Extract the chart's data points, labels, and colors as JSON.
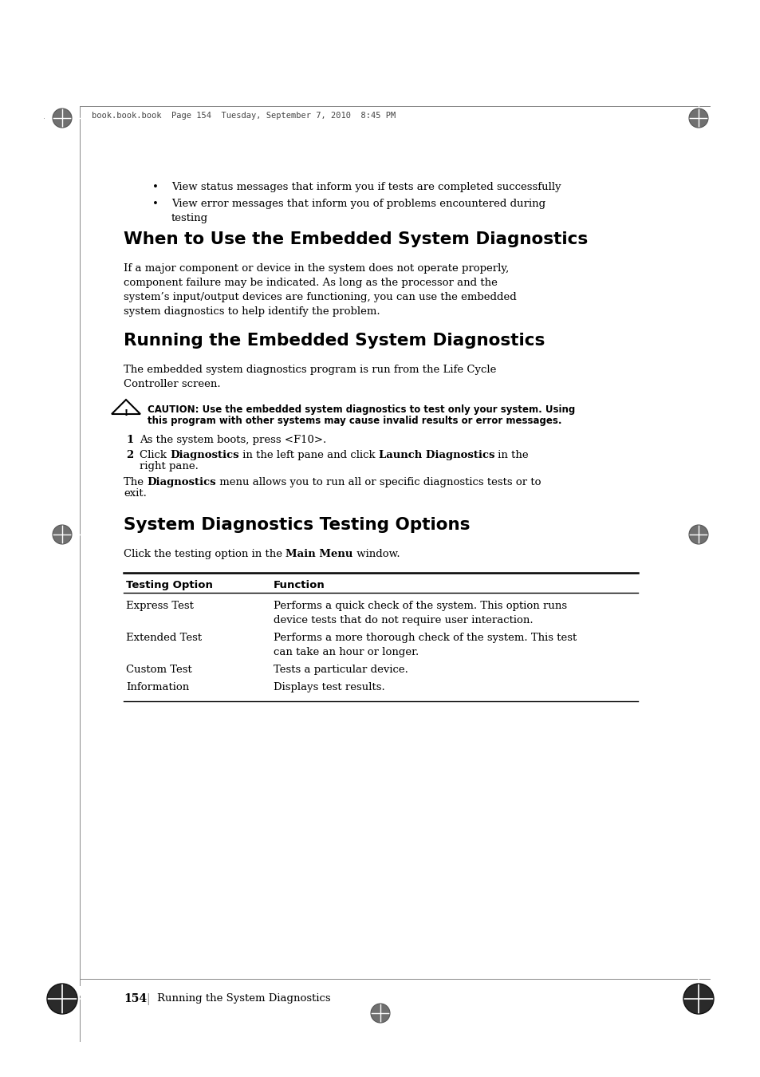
{
  "page_header": "book.book.book  Page 154  Tuesday, September 7, 2010  8:45 PM",
  "bullet_points": [
    "View status messages that inform you if tests are completed successfully",
    "View error messages that inform you of problems encountered during\ntesting"
  ],
  "section1_title": "When to Use the Embedded System Diagnostics",
  "section1_body": "If a major component or device in the system does not operate properly,\ncomponent failure may be indicated. As long as the processor and the\nsystem’s input/output devices are functioning, you can use the embedded\nsystem diagnostics to help identify the problem.",
  "section2_title": "Running the Embedded System Diagnostics",
  "section2_intro": "The embedded system diagnostics program is run from the Life Cycle\nController screen.",
  "caution_line1": "CAUTION: Use the embedded system diagnostics to test only your system. Using",
  "caution_line2": "this program with other systems may cause invalid results or error messages.",
  "step1": "As the system boots, press <F10>.",
  "step2_parts": [
    [
      "Click ",
      false
    ],
    [
      "Diagnostics",
      true
    ],
    [
      " in the left pane and click ",
      false
    ],
    [
      "Launch Diagnostics",
      true
    ],
    [
      " in the",
      false
    ]
  ],
  "step2_line2": "right pane.",
  "diag_line1_parts": [
    [
      "The ",
      false
    ],
    [
      "Diagnostics",
      true
    ],
    [
      " menu allows you to run all or specific diagnostics tests or to",
      false
    ]
  ],
  "diag_line2": "exit.",
  "section3_title": "System Diagnostics Testing Options",
  "intro3_parts": [
    [
      "Click the testing option in the ",
      false
    ],
    [
      "Main Menu",
      true
    ],
    [
      " window.",
      false
    ]
  ],
  "table_headers": [
    "Testing Option",
    "Function"
  ],
  "table_rows": [
    [
      "Express Test",
      "Performs a quick check of the system. This option runs\ndevice tests that do not require user interaction."
    ],
    [
      "Extended Test",
      "Performs a more thorough check of the system. This test\ncan take an hour or longer."
    ],
    [
      "Custom Test",
      "Tests a particular device."
    ],
    [
      "Information",
      "Displays test results."
    ]
  ],
  "footer_page": "154",
  "footer_text": "Running the System Diagnostics",
  "bg_color": "#ffffff"
}
